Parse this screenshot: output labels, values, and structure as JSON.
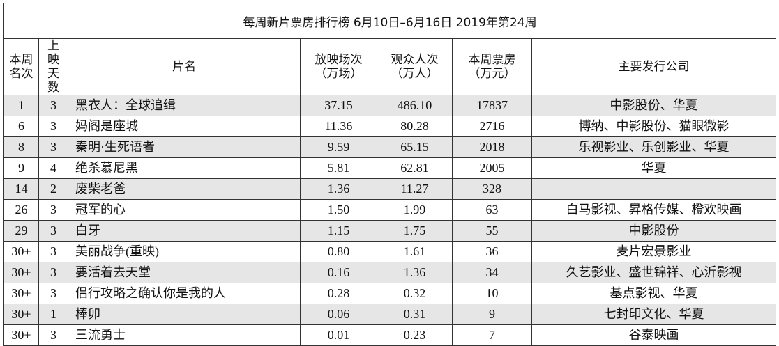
{
  "title": "每周新片票房排行榜   6月10日–6月16日  2019年第24周",
  "table": {
    "header": [
      "本周\n名次",
      "上映\n天数",
      "片名",
      "放映场次\n（万场）",
      "观众人次\n（万人）",
      "本周票房\n（万元）",
      "主要发行公司"
    ],
    "rows": [
      [
        "1",
        "3",
        "黑衣人：全球追缉",
        "37.15",
        "486.10",
        "17837",
        "中影股份、华夏"
      ],
      [
        "6",
        "3",
        "妈阁是座城",
        "11.36",
        "80.28",
        "2716",
        "博纳、中影股份、猫眼微影"
      ],
      [
        "8",
        "3",
        "秦明·生死语者",
        "9.59",
        "65.15",
        "2018",
        "乐视影业、乐创影业、华夏"
      ],
      [
        "9",
        "4",
        "绝杀慕尼黑",
        "5.81",
        "62.81",
        "2005",
        "华夏"
      ],
      [
        "14",
        "2",
        "废柴老爸",
        "1.36",
        "11.27",
        "328",
        null
      ],
      [
        "26",
        "3",
        "冠军的心",
        "1.50",
        "1.99",
        "63",
        "白马影视、昇格传媒、橙欢映画"
      ],
      [
        "29",
        "3",
        "白牙",
        "1.15",
        "1.75",
        "55",
        "中影股份"
      ],
      [
        "30+",
        "3",
        "美丽战争(重映)",
        "0.80",
        "1.61",
        "36",
        "麦片宏景影业"
      ],
      [
        "30+",
        "3",
        "要活着去天堂",
        "0.16",
        "1.36",
        "34",
        "久艺影业、盛世锦祥、心沂影视"
      ],
      [
        "30+",
        "3",
        "侣行攻略之确认你是我的人",
        "0.28",
        "0.32",
        "10",
        "基点影视、华夏"
      ],
      [
        "30+",
        "1",
        "棒卯",
        "0.06",
        "0.31",
        "9",
        "七封印文化、华夏"
      ],
      [
        "30+",
        "3",
        "三流勇士",
        "0.01",
        "0.23",
        "7",
        "谷泰映画"
      ]
    ]
  }
}
